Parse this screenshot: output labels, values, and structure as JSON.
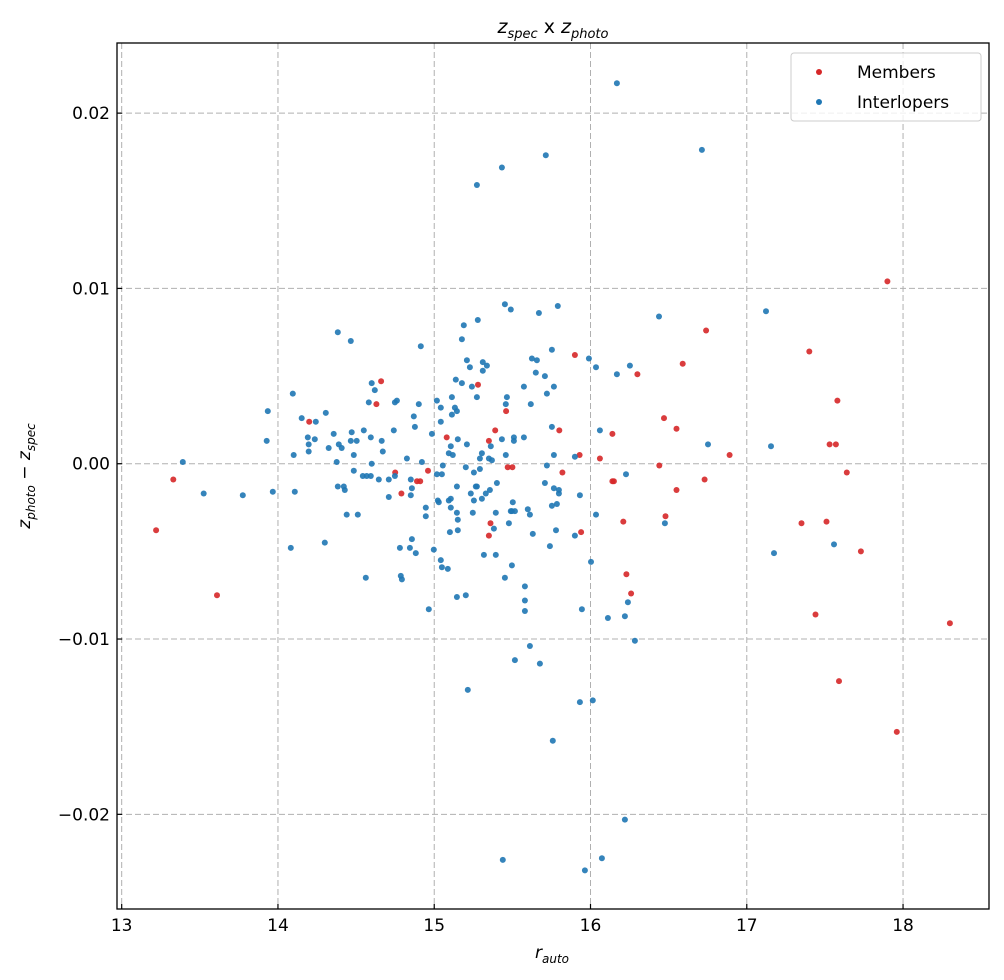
{
  "chart_data": {
    "type": "scatter",
    "title": {
      "var1": "z",
      "sub1": "spec",
      "mid": " x ",
      "var2": "z",
      "sub2": "photo"
    },
    "xlabel": {
      "var": "r",
      "sub": "auto"
    },
    "ylabel": {
      "var1": "z",
      "sub1": "photo",
      "op": " − ",
      "var2": "z",
      "sub2": "spec"
    },
    "xlim": [
      12.97,
      18.55
    ],
    "ylim": [
      -0.0254,
      0.024
    ],
    "xticks": [
      13,
      14,
      15,
      16,
      17,
      18
    ],
    "xtick_labels": [
      "13",
      "14",
      "15",
      "16",
      "17",
      "18"
    ],
    "yticks": [
      0.02,
      0.01,
      0.0,
      -0.01,
      -0.02
    ],
    "ytick_labels": [
      "0.02",
      "0.01",
      "0.00",
      "−0.01",
      "−0.02"
    ],
    "grid": true,
    "legend_position": "top-right",
    "series": [
      {
        "name": "Members",
        "color": "#d62728",
        "points": [
          [
            13.22,
            -0.0038
          ],
          [
            13.33,
            -0.0009
          ],
          [
            13.61,
            -0.0075
          ],
          [
            14.2,
            0.0024
          ],
          [
            14.63,
            0.0034
          ],
          [
            14.66,
            0.0047
          ],
          [
            15.08,
            0.0015
          ],
          [
            15.39,
            0.0019
          ],
          [
            15.35,
            0.0013
          ],
          [
            14.75,
            -0.0005
          ],
          [
            14.79,
            -0.0017
          ],
          [
            14.96,
            -0.0004
          ],
          [
            14.89,
            -0.001
          ],
          [
            14.91,
            -0.001
          ],
          [
            15.28,
            0.0045
          ],
          [
            15.36,
            -0.0034
          ],
          [
            15.35,
            -0.0041
          ],
          [
            15.46,
            0.003
          ],
          [
            15.47,
            -0.0002
          ],
          [
            15.5,
            -0.0002
          ],
          [
            15.9,
            0.0062
          ],
          [
            16.3,
            0.0051
          ],
          [
            15.8,
            0.0019
          ],
          [
            15.93,
            0.0005
          ],
          [
            16.06,
            0.0003
          ],
          [
            16.14,
            0.0017
          ],
          [
            15.82,
            -0.0005
          ],
          [
            16.14,
            -0.001
          ],
          [
            16.15,
            -0.001
          ],
          [
            16.47,
            0.0026
          ],
          [
            16.55,
            0.002
          ],
          [
            16.44,
            -0.0001
          ],
          [
            16.55,
            -0.0015
          ],
          [
            15.94,
            -0.0039
          ],
          [
            16.21,
            -0.0033
          ],
          [
            16.48,
            -0.003
          ],
          [
            16.23,
            -0.0063
          ],
          [
            16.26,
            -0.0074
          ],
          [
            16.59,
            0.0057
          ],
          [
            16.74,
            0.0076
          ],
          [
            16.73,
            -0.0009
          ],
          [
            16.89,
            0.0005
          ],
          [
            17.35,
            -0.0034
          ],
          [
            17.4,
            0.0064
          ],
          [
            17.44,
            -0.0086
          ],
          [
            17.51,
            -0.0033
          ],
          [
            17.53,
            0.0011
          ],
          [
            17.57,
            0.0011
          ],
          [
            17.58,
            0.0036
          ],
          [
            17.64,
            -0.0005
          ],
          [
            17.59,
            -0.0124
          ],
          [
            17.73,
            -0.005
          ],
          [
            17.9,
            0.0104
          ],
          [
            17.96,
            -0.0153
          ],
          [
            18.3,
            -0.0091
          ]
        ]
      },
      {
        "name": "Interlopers",
        "color": "#1f77b4",
        "points": [
          [
            14.383,
            0.0075
          ],
          [
            14.466,
            0.007
          ],
          [
            14.914,
            0.0067
          ],
          [
            15.189,
            0.0079
          ],
          [
            15.279,
            0.0082
          ],
          [
            15.177,
            0.0071
          ],
          [
            15.209,
            0.0059
          ],
          [
            15.228,
            0.0055
          ],
          [
            15.311,
            0.0058
          ],
          [
            15.337,
            0.0056
          ],
          [
            15.311,
            0.0053
          ],
          [
            15.138,
            0.0048
          ],
          [
            15.177,
            0.0046
          ],
          [
            15.241,
            0.0044
          ],
          [
            15.273,
            0.0038
          ],
          [
            14.095,
            0.004
          ],
          [
            13.935,
            0.003
          ],
          [
            14.152,
            0.0026
          ],
          [
            14.242,
            0.0024
          ],
          [
            14.306,
            0.0029
          ],
          [
            14.6,
            0.0046
          ],
          [
            14.62,
            0.0042
          ],
          [
            14.581,
            0.0035
          ],
          [
            14.748,
            0.0035
          ],
          [
            14.761,
            0.0036
          ],
          [
            14.901,
            0.0034
          ],
          [
            14.869,
            0.0027
          ],
          [
            14.876,
            0.0021
          ],
          [
            15.017,
            0.0036
          ],
          [
            15.042,
            0.0032
          ],
          [
            15.113,
            0.0038
          ],
          [
            15.042,
            0.0024
          ],
          [
            15.132,
            0.0032
          ],
          [
            15.113,
            0.0028
          ],
          [
            15.145,
            0.003
          ],
          [
            14.741,
            0.0019
          ],
          [
            14.985,
            0.0017
          ],
          [
            13.928,
            0.0013
          ],
          [
            14.191,
            0.0015
          ],
          [
            14.236,
            0.0014
          ],
          [
            14.197,
            0.0011
          ],
          [
            14.197,
            0.0007
          ],
          [
            14.101,
            0.0005
          ],
          [
            14.325,
            0.0009
          ],
          [
            14.357,
            0.0017
          ],
          [
            14.389,
            0.0011
          ],
          [
            14.408,
            0.0009
          ],
          [
            14.472,
            0.0018
          ],
          [
            14.466,
            0.0013
          ],
          [
            14.504,
            0.0013
          ],
          [
            14.549,
            0.0019
          ],
          [
            14.594,
            0.0015
          ],
          [
            14.664,
            0.0013
          ],
          [
            14.671,
            0.0007
          ],
          [
            14.485,
            0.0005
          ],
          [
            14.376,
            0.0001
          ],
          [
            14.6,
            0.0
          ],
          [
            14.825,
            0.0003
          ],
          [
            14.921,
            0.0001
          ],
          [
            15.106,
            0.001
          ],
          [
            15.151,
            0.0014
          ],
          [
            15.209,
            0.0011
          ],
          [
            15.093,
            0.0006
          ],
          [
            15.119,
            0.0005
          ],
          [
            15.305,
            0.0006
          ],
          [
            15.292,
            0.0003
          ],
          [
            15.35,
            0.0003
          ],
          [
            15.369,
            0.0002
          ],
          [
            15.362,
            0.001
          ],
          [
            15.055,
            -0.0001
          ],
          [
            14.485,
            -0.0004
          ],
          [
            14.543,
            -0.0007
          ],
          [
            14.568,
            -0.0007
          ],
          [
            14.594,
            -0.0007
          ],
          [
            14.645,
            -0.0009
          ],
          [
            14.709,
            -0.0009
          ],
          [
            14.748,
            -0.0007
          ],
          [
            14.85,
            -0.0009
          ],
          [
            14.857,
            -0.0014
          ],
          [
            14.85,
            -0.0018
          ],
          [
            15.017,
            -0.0006
          ],
          [
            15.049,
            -0.0006
          ],
          [
            15.202,
            -0.0002
          ],
          [
            15.254,
            -0.0005
          ],
          [
            15.292,
            -0.0003
          ],
          [
            14.383,
            -0.0013
          ],
          [
            14.421,
            -0.0013
          ],
          [
            14.428,
            -0.0015
          ],
          [
            13.775,
            -0.0018
          ],
          [
            13.967,
            -0.0016
          ],
          [
            14.108,
            -0.0016
          ],
          [
            14.709,
            -0.0019
          ],
          [
            15.023,
            -0.0021
          ],
          [
            15.029,
            -0.0022
          ],
          [
            15.093,
            -0.0021
          ],
          [
            15.106,
            -0.002
          ],
          [
            15.106,
            -0.0025
          ],
          [
            15.145,
            -0.0013
          ],
          [
            15.234,
            -0.0017
          ],
          [
            15.273,
            -0.0013
          ],
          [
            15.254,
            -0.0021
          ],
          [
            15.305,
            -0.002
          ],
          [
            15.33,
            -0.0017
          ],
          [
            15.356,
            -0.0015
          ],
          [
            15.401,
            -0.0011
          ],
          [
            14.946,
            -0.0025
          ],
          [
            14.946,
            -0.003
          ],
          [
            15.145,
            -0.0028
          ],
          [
            15.151,
            -0.0032
          ],
          [
            15.247,
            -0.0028
          ],
          [
            15.394,
            -0.0028
          ],
          [
            15.1,
            -0.0039
          ],
          [
            15.151,
            -0.0038
          ],
          [
            15.382,
            -0.0037
          ],
          [
            14.44,
            -0.0029
          ],
          [
            14.511,
            -0.0029
          ],
          [
            14.082,
            -0.0048
          ],
          [
            14.3,
            -0.0045
          ],
          [
            14.857,
            -0.0043
          ],
          [
            14.78,
            -0.0048
          ],
          [
            14.844,
            -0.0048
          ],
          [
            14.882,
            -0.0051
          ],
          [
            14.997,
            -0.0049
          ],
          [
            15.042,
            -0.0055
          ],
          [
            15.049,
            -0.0059
          ],
          [
            15.087,
            -0.006
          ],
          [
            15.318,
            -0.0052
          ],
          [
            15.394,
            -0.0052
          ],
          [
            14.562,
            -0.0065
          ],
          [
            14.786,
            -0.0064
          ],
          [
            14.793,
            -0.0066
          ],
          [
            15.145,
            -0.0076
          ],
          [
            15.202,
            -0.0075
          ],
          [
            14.965,
            -0.0083
          ],
          [
            15.452,
            0.0091
          ],
          [
            15.49,
            0.0088
          ],
          [
            15.67,
            0.0086
          ],
          [
            15.791,
            0.009
          ],
          [
            16.438,
            0.0084
          ],
          [
            15.753,
            0.0065
          ],
          [
            15.625,
            0.006
          ],
          [
            15.657,
            0.0059
          ],
          [
            15.65,
            0.0052
          ],
          [
            15.708,
            0.005
          ],
          [
            15.766,
            0.0044
          ],
          [
            15.721,
            0.004
          ],
          [
            15.574,
            0.0044
          ],
          [
            15.618,
            0.0034
          ],
          [
            15.465,
            0.0038
          ],
          [
            15.458,
            0.0034
          ],
          [
            15.99,
            0.006
          ],
          [
            16.035,
            0.0055
          ],
          [
            16.169,
            0.0051
          ],
          [
            16.252,
            0.0056
          ],
          [
            15.433,
            0.0014
          ],
          [
            15.51,
            0.0015
          ],
          [
            15.51,
            0.0013
          ],
          [
            15.574,
            0.0015
          ],
          [
            15.753,
            0.0021
          ],
          [
            15.458,
            0.0005
          ],
          [
            15.766,
            0.0005
          ],
          [
            15.9,
            0.0004
          ],
          [
            16.06,
            0.0019
          ],
          [
            15.721,
            -0.0001
          ],
          [
            15.708,
            -0.0011
          ],
          [
            15.766,
            -0.0014
          ],
          [
            15.798,
            -0.0015
          ],
          [
            15.798,
            -0.0017
          ],
          [
            15.932,
            -0.0018
          ],
          [
            15.266,
            -0.0013
          ],
          [
            15.497,
            -0.0027
          ],
          [
            15.516,
            -0.0027
          ],
          [
            15.49,
            -0.0027
          ],
          [
            15.503,
            -0.0022
          ],
          [
            15.599,
            -0.0026
          ],
          [
            15.612,
            -0.0029
          ],
          [
            15.753,
            -0.0024
          ],
          [
            15.785,
            -0.0023
          ],
          [
            16.035,
            -0.0029
          ],
          [
            16.227,
            -0.0006
          ],
          [
            15.478,
            -0.0034
          ],
          [
            15.631,
            -0.004
          ],
          [
            15.779,
            -0.0038
          ],
          [
            15.9,
            -0.0041
          ],
          [
            15.74,
            -0.0047
          ],
          [
            16.003,
            -0.0056
          ],
          [
            16.476,
            -0.0034
          ],
          [
            15.497,
            -0.0058
          ],
          [
            15.452,
            -0.0065
          ],
          [
            15.58,
            -0.007
          ],
          [
            15.58,
            -0.0078
          ],
          [
            15.58,
            -0.0084
          ],
          [
            15.945,
            -0.0083
          ],
          [
            16.111,
            -0.0088
          ],
          [
            16.22,
            -0.0087
          ],
          [
            16.239,
            -0.0079
          ],
          [
            13.391,
            0.0001
          ],
          [
            13.525,
            -0.0017
          ],
          [
            16.169,
            0.0217
          ],
          [
            16.713,
            0.0179
          ],
          [
            15.714,
            0.0176
          ],
          [
            15.433,
            0.0169
          ],
          [
            15.273,
            0.0159
          ],
          [
            17.123,
            0.0087
          ],
          [
            16.752,
            0.0011
          ],
          [
            17.155,
            0.001
          ],
          [
            17.174,
            -0.0051
          ],
          [
            17.558,
            -0.0046
          ],
          [
            15.215,
            -0.0129
          ],
          [
            15.612,
            -0.0104
          ],
          [
            15.516,
            -0.0112
          ],
          [
            15.676,
            -0.0114
          ],
          [
            15.759,
            -0.0158
          ],
          [
            16.015,
            -0.0135
          ],
          [
            15.932,
            -0.0136
          ],
          [
            16.22,
            -0.0203
          ],
          [
            15.439,
            -0.0226
          ],
          [
            15.964,
            -0.0232
          ],
          [
            16.073,
            -0.0225
          ],
          [
            16.284,
            -0.0101
          ]
        ]
      }
    ]
  }
}
